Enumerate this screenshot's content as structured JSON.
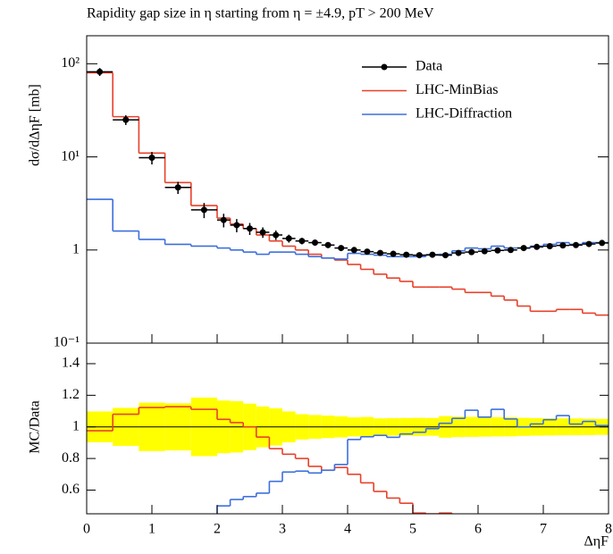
{
  "chart_data": {
    "type": "histogram",
    "title": "Rapidity gap size in η starting from η = ±4.9, pT > 200 MeV",
    "ylabel": "dσ/dΔηF [mb]",
    "ratio_ylabel": "MC/Data",
    "xlabel": "ΔηF",
    "bins": [
      0,
      0.4,
      0.8,
      1.2,
      1.6,
      2.0,
      2.2,
      2.4,
      2.6,
      2.8,
      3.0,
      3.2,
      3.4,
      3.6,
      3.8,
      4.0,
      4.2,
      4.4,
      4.6,
      4.8,
      5.0,
      5.2,
      5.4,
      5.6,
      5.8,
      6.0,
      6.2,
      6.4,
      6.6,
      6.8,
      7.0,
      7.2,
      7.4,
      7.6,
      7.8,
      8.0
    ],
    "xlim": [
      0,
      8
    ],
    "xticks": [
      0,
      1,
      2,
      3,
      4,
      5,
      6,
      7,
      8
    ],
    "ylim": [
      0.1,
      200
    ],
    "log_y": true,
    "yticks": [
      {
        "value": 100,
        "label": "10²"
      },
      {
        "value": 10,
        "label": "10¹"
      },
      1,
      {
        "value": 0.1,
        "label": "10⁻¹"
      }
    ],
    "ratio_ylim": [
      0.45,
      1.53
    ],
    "ratio_yticks": [
      0.6,
      0.8,
      1,
      1.2,
      1.4
    ],
    "legend": "upper right",
    "band_color": "#ffff00",
    "series": [
      {
        "name": "Data",
        "color": "#000000",
        "values": [
          82,
          25,
          9.8,
          4.7,
          2.7,
          2.1,
          1.85,
          1.7,
          1.55,
          1.45,
          1.33,
          1.25,
          1.2,
          1.13,
          1.05,
          1.0,
          0.96,
          0.93,
          0.91,
          0.89,
          0.88,
          0.89,
          0.88,
          0.93,
          0.95,
          0.97,
          0.99,
          1.0,
          1.05,
          1.08,
          1.1,
          1.12,
          1.13,
          1.16,
          1.19
        ],
        "errors": [
          8,
          3,
          1.5,
          0.7,
          0.5,
          0.35,
          0.3,
          0.25,
          0.2,
          0.17,
          0.13,
          0.1,
          0.09,
          0.08,
          0.07,
          0.06,
          0.06,
          0.05,
          0.05,
          0.05,
          0.05,
          0.05,
          0.06,
          0.06,
          0.06,
          0.06,
          0.06,
          0.06,
          0.06,
          0.06,
          0.06,
          0.06,
          0.06,
          0.06,
          0.06
        ]
      },
      {
        "name": "LHC-MinBias",
        "color": "#e8412a",
        "values": [
          80,
          27,
          11,
          5.3,
          3.0,
          2.2,
          1.9,
          1.7,
          1.45,
          1.25,
          1.1,
          1.0,
          0.9,
          0.82,
          0.78,
          0.7,
          0.62,
          0.55,
          0.5,
          0.46,
          0.4,
          0.4,
          0.4,
          0.38,
          0.35,
          0.35,
          0.32,
          0.29,
          0.25,
          0.22,
          0.22,
          0.23,
          0.23,
          0.21,
          0.2
        ]
      },
      {
        "name": "LHC-Diffraction",
        "color": "#3c6fdc",
        "values": [
          3.5,
          1.6,
          1.3,
          1.15,
          1.1,
          1.05,
          1.0,
          0.95,
          0.9,
          0.95,
          0.95,
          0.9,
          0.85,
          0.82,
          0.8,
          0.92,
          0.9,
          0.88,
          0.85,
          0.85,
          0.85,
          0.88,
          0.9,
          0.98,
          1.05,
          1.03,
          1.1,
          1.05,
          1.05,
          1.1,
          1.15,
          1.2,
          1.15,
          1.2,
          1.2
        ]
      }
    ]
  }
}
